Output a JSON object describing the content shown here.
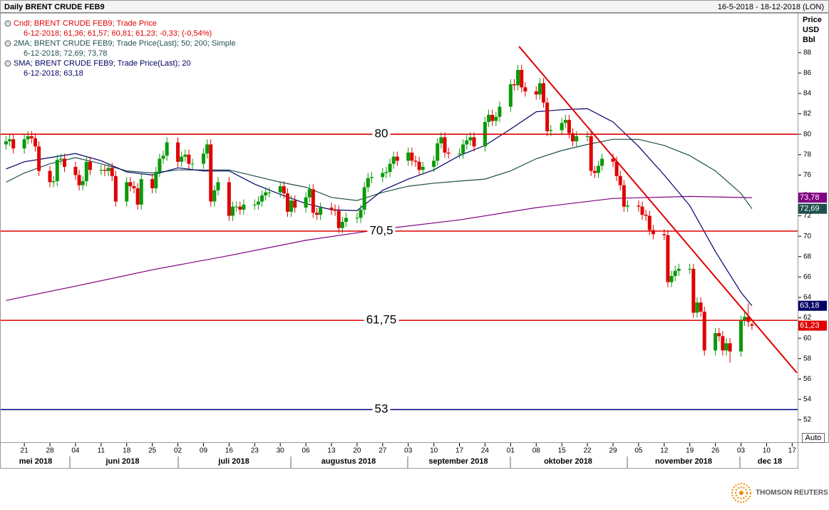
{
  "chart_data": {
    "type": "candlestick",
    "title": "Daily BRENT CRUDE FEB9",
    "date_range": "16-5-2018 - 18-12-2018 (LON)",
    "y_axis_label": [
      "Price",
      "USD",
      "Bbl"
    ],
    "scale_mode": "Auto",
    "legend": [
      {
        "text": "Cndl; BRENT CRUDE FEB9; Trade Price",
        "color": "#e00000"
      },
      {
        "text": "6-12-2018; 61,36; 61,57; 60,81; 61,23; -0,33; (-0,54%)",
        "color": "#e00000"
      },
      {
        "text": "2MA; BRENT CRUDE FEB9; Trade Price(Last);  50; 200; Simple",
        "color": "#1f4f4f"
      },
      {
        "text": "6-12-2018; 72,69; 73,78",
        "color": "#1f4f4f"
      },
      {
        "text": "SMA; BRENT CRUDE FEB9; Trade Price(Last);  20",
        "color": "#000066"
      },
      {
        "text": "6-12-2018; 63,18",
        "color": "#000066"
      }
    ],
    "xlim": [
      2.3,
      218.3
    ],
    "xticks": [
      {
        "value": 7,
        "label": "21"
      },
      {
        "value": 14,
        "label": "28"
      },
      {
        "value": 21,
        "label": "04"
      },
      {
        "value": 28,
        "label": "11"
      },
      {
        "value": 35,
        "label": "18"
      },
      {
        "value": 42,
        "label": "25"
      },
      {
        "value": 49,
        "label": "02"
      },
      {
        "value": 56,
        "label": "09"
      },
      {
        "value": 63,
        "label": "16"
      },
      {
        "value": 70,
        "label": "23"
      },
      {
        "value": 77,
        "label": "30"
      },
      {
        "value": 84,
        "label": "06"
      },
      {
        "value": 91,
        "label": "13"
      },
      {
        "value": 98,
        "label": "20"
      },
      {
        "value": 105,
        "label": "27"
      },
      {
        "value": 112,
        "label": "03"
      },
      {
        "value": 119,
        "label": "10"
      },
      {
        "value": 126,
        "label": "17"
      },
      {
        "value": 133,
        "label": "24"
      },
      {
        "value": 140,
        "label": "01"
      },
      {
        "value": 147,
        "label": "08"
      },
      {
        "value": 154,
        "label": "15"
      },
      {
        "value": 161,
        "label": "22"
      },
      {
        "value": 168,
        "label": "29"
      },
      {
        "value": 175,
        "label": "05"
      },
      {
        "value": 182,
        "label": "12"
      },
      {
        "value": 189,
        "label": "19"
      },
      {
        "value": 196,
        "label": "26"
      },
      {
        "value": 203,
        "label": "03"
      },
      {
        "value": 210,
        "label": "10"
      },
      {
        "value": 217,
        "label": "17"
      }
    ],
    "months": [
      "mei 2018",
      "juni 2018",
      "juli 2018",
      "augustus 2018",
      "september 2018",
      "oktober 2018",
      "november 2018",
      "dec 18"
    ],
    "ylim": [
      49.8,
      91.9
    ],
    "yticks": [
      52,
      54,
      56,
      58,
      60,
      62,
      64,
      66,
      68,
      70,
      72,
      74,
      76,
      78,
      80,
      82,
      84,
      86,
      88
    ],
    "up_color": "#0a9a0a",
    "down_color": "#e00000",
    "x": [
      2,
      3,
      4,
      7,
      8,
      9,
      10,
      11,
      14,
      15,
      16,
      17,
      18,
      21,
      22,
      23,
      24,
      25,
      28,
      29,
      30,
      31,
      32,
      35,
      36,
      37,
      38,
      39,
      42,
      43,
      44,
      45,
      46,
      49,
      50,
      51,
      52,
      53,
      56,
      57,
      58,
      59,
      60,
      63,
      64,
      65,
      66,
      67,
      70,
      71,
      72,
      73,
      74,
      77,
      78,
      79,
      80,
      81,
      84,
      85,
      86,
      87,
      88,
      91,
      92,
      93,
      94,
      95,
      98,
      99,
      100,
      101,
      102,
      105,
      106,
      107,
      108,
      109,
      112,
      113,
      114,
      115,
      116,
      119,
      120,
      121,
      122,
      123,
      126,
      127,
      128,
      129,
      130,
      133,
      134,
      135,
      136,
      137,
      140,
      141,
      142,
      143,
      144,
      147,
      148,
      149,
      150,
      151,
      154,
      155,
      156,
      157,
      158,
      161,
      162,
      163,
      164,
      165,
      168,
      169,
      170,
      171,
      172,
      175,
      176,
      177,
      178,
      179,
      182,
      183,
      184,
      185,
      186,
      189,
      190,
      191,
      192,
      193,
      196,
      197,
      198,
      199,
      200,
      203,
      204,
      205,
      206
    ],
    "open": [
      79.0,
      79.3,
      79.5,
      78.6,
      79.5,
      79.8,
      79.6,
      78.8,
      76.4,
      75.3,
      75.4,
      77.5,
      77.6,
      76.8,
      76.0,
      75.0,
      75.4,
      77.3,
      76.5,
      76.5,
      76.4,
      76.7,
      75.9,
      73.4,
      75.3,
      74.9,
      74.7,
      73.1,
      75.6,
      74.7,
      76.3,
      77.6,
      77.9,
      79.2,
      77.3,
      77.8,
      78.0,
      77.1,
      77.1,
      78.1,
      79.0,
      73.4,
      74.5,
      75.3,
      72.0,
      72.9,
      72.9,
      72.6,
      73.1,
      73.1,
      73.4,
      74.0,
      74.3,
      74.3,
      74.9,
      74.2,
      72.4,
      73.5,
      72.8,
      73.8,
      74.6,
      72.3,
      72.1,
      72.8,
      72.6,
      72.5,
      70.8,
      71.4,
      71.8,
      71.8,
      72.6,
      74.8,
      75.7,
      75.8,
      76.2,
      76.3,
      77.1,
      77.8,
      77.4,
      78.2,
      77.4,
      77.3,
      76.5,
      76.8,
      77.4,
      79.1,
      79.7,
      78.2,
      78.1,
      78.1,
      79.0,
      79.4,
      79.7,
      78.8,
      81.2,
      81.9,
      81.3,
      81.7,
      82.7,
      84.9,
      84.8,
      86.3,
      84.6,
      84.2,
      83.9,
      85.0,
      83.1,
      80.3,
      80.4,
      81.1,
      81.4,
      80.1,
      79.3,
      79.8,
      79.8,
      76.4,
      76.2,
      76.9,
      77.6,
      77.3,
      75.9,
      75.0,
      72.9,
      73.0,
      72.9,
      72.1,
      72.0,
      70.6,
      70.2,
      70.1,
      65.5,
      66.1,
      66.6,
      66.8,
      66.8,
      62.5,
      63.5,
      62.6,
      58.8,
      60.5,
      60.2,
      58.8,
      59.5,
      58.7,
      61.7,
      62.1,
      61.36
    ],
    "high": [
      79.8,
      80.0,
      80.0,
      80.0,
      80.3,
      80.3,
      80.1,
      79.3,
      76.9,
      75.9,
      78.0,
      78.1,
      78.1,
      77.3,
      76.5,
      75.9,
      77.8,
      77.8,
      77.0,
      77.0,
      77.2,
      77.2,
      76.4,
      75.8,
      75.8,
      75.4,
      75.2,
      76.1,
      76.1,
      76.8,
      78.1,
      78.4,
      79.7,
      79.7,
      78.3,
      78.5,
      78.5,
      77.6,
      78.6,
      79.5,
      79.5,
      75.0,
      75.8,
      75.8,
      73.4,
      73.4,
      73.4,
      73.6,
      73.6,
      73.9,
      74.5,
      74.8,
      74.8,
      75.4,
      75.4,
      74.7,
      74.0,
      74.0,
      74.3,
      75.1,
      75.1,
      72.8,
      73.3,
      73.3,
      73.1,
      73.0,
      71.9,
      72.3,
      72.3,
      73.1,
      75.3,
      76.2,
      76.3,
      76.7,
      76.8,
      77.6,
      78.3,
      78.3,
      78.7,
      78.7,
      77.9,
      77.8,
      77.3,
      77.9,
      79.6,
      80.2,
      80.2,
      78.7,
      78.6,
      79.5,
      79.9,
      80.2,
      80.2,
      81.7,
      82.4,
      82.4,
      82.2,
      83.2,
      85.4,
      85.4,
      86.8,
      86.8,
      85.1,
      84.7,
      85.5,
      85.5,
      83.6,
      80.9,
      81.6,
      81.9,
      81.9,
      80.6,
      80.3,
      80.3,
      80.3,
      76.9,
      77.4,
      78.1,
      78.1,
      77.8,
      76.4,
      75.5,
      73.5,
      73.5,
      73.4,
      72.6,
      72.5,
      71.1,
      70.7,
      70.6,
      66.6,
      67.1,
      67.3,
      67.3,
      67.3,
      64.0,
      64.0,
      63.1,
      61.0,
      61.0,
      60.7,
      60.0,
      60.0,
      62.2,
      62.6,
      63.4,
      61.57
    ],
    "low": [
      78.5,
      78.8,
      78.1,
      78.1,
      79.0,
      79.1,
      78.3,
      75.9,
      74.8,
      74.8,
      74.9,
      77.0,
      76.3,
      75.5,
      74.5,
      74.5,
      74.9,
      76.0,
      76.0,
      75.9,
      75.9,
      75.4,
      72.9,
      72.9,
      74.4,
      74.2,
      72.6,
      72.6,
      74.2,
      74.2,
      75.8,
      77.1,
      77.4,
      76.8,
      76.8,
      77.3,
      76.6,
      76.6,
      76.6,
      77.6,
      72.9,
      72.9,
      74.0,
      71.5,
      71.5,
      72.4,
      72.1,
      72.1,
      72.6,
      72.6,
      72.9,
      73.5,
      73.8,
      73.8,
      73.7,
      71.9,
      71.9,
      72.3,
      72.3,
      73.3,
      71.8,
      71.6,
      71.6,
      72.1,
      72.0,
      70.3,
      70.3,
      70.9,
      71.3,
      71.3,
      72.1,
      74.3,
      75.2,
      75.3,
      75.7,
      75.8,
      76.6,
      76.9,
      76.9,
      76.9,
      76.8,
      76.0,
      76.0,
      76.3,
      76.9,
      78.6,
      77.7,
      77.6,
      77.6,
      77.6,
      78.5,
      78.9,
      78.3,
      78.3,
      80.7,
      80.8,
      80.8,
      81.2,
      82.2,
      84.3,
      84.3,
      84.1,
      83.7,
      83.4,
      83.4,
      82.6,
      79.8,
      79.8,
      79.9,
      80.6,
      79.6,
      78.8,
      78.8,
      79.3,
      75.9,
      75.7,
      75.7,
      76.4,
      76.8,
      75.4,
      74.5,
      72.4,
      72.4,
      72.4,
      71.6,
      71.5,
      70.1,
      69.7,
      69.6,
      65.0,
      65.0,
      65.6,
      66.1,
      66.3,
      62.0,
      62.0,
      62.1,
      58.3,
      58.3,
      59.7,
      58.3,
      58.3,
      57.6,
      58.2,
      61.2,
      61.1,
      60.81
    ],
    "close": [
      79.3,
      79.5,
      78.6,
      79.5,
      79.8,
      79.6,
      78.8,
      76.4,
      75.3,
      75.4,
      77.5,
      77.6,
      76.8,
      76.0,
      75.0,
      75.4,
      77.3,
      76.5,
      76.5,
      76.4,
      76.7,
      75.9,
      73.4,
      75.3,
      74.9,
      74.7,
      73.1,
      75.6,
      74.7,
      76.3,
      77.6,
      77.9,
      79.2,
      77.3,
      77.8,
      78.0,
      77.1,
      77.1,
      78.1,
      79.0,
      73.4,
      74.5,
      75.3,
      72.0,
      72.9,
      72.9,
      72.6,
      73.1,
      73.1,
      73.4,
      74.0,
      74.3,
      74.3,
      74.9,
      74.2,
      72.4,
      73.5,
      72.8,
      73.8,
      74.6,
      72.3,
      72.1,
      72.8,
      72.6,
      72.5,
      70.8,
      71.4,
      71.8,
      71.8,
      72.6,
      74.8,
      75.7,
      75.8,
      76.2,
      76.3,
      77.1,
      77.8,
      77.4,
      78.2,
      77.4,
      77.3,
      76.5,
      76.8,
      77.4,
      79.1,
      79.7,
      78.2,
      78.1,
      78.1,
      79.0,
      79.4,
      79.7,
      78.8,
      81.2,
      81.9,
      81.3,
      81.7,
      82.7,
      84.9,
      84.8,
      86.3,
      84.6,
      84.2,
      83.9,
      85.0,
      83.1,
      80.3,
      80.4,
      81.1,
      81.4,
      80.1,
      79.3,
      79.8,
      79.8,
      76.4,
      76.2,
      76.9,
      77.6,
      77.3,
      75.9,
      75.0,
      72.9,
      73.0,
      72.9,
      72.1,
      72.0,
      70.6,
      70.2,
      70.1,
      65.5,
      66.1,
      66.6,
      66.8,
      66.8,
      62.5,
      63.5,
      62.6,
      58.8,
      60.5,
      60.2,
      58.8,
      59.5,
      58.7,
      61.7,
      62.1,
      61.6,
      61.23
    ],
    "last_label": "61,23",
    "last_color": "#e00000",
    "series": [
      {
        "color": "#800080",
        "last_label": "73,78",
        "x": [
          2,
          21,
          42,
          63,
          84,
          105,
          126,
          147,
          168,
          189,
          206
        ],
        "values": [
          63.7,
          65.1,
          66.7,
          68.1,
          69.6,
          70.7,
          71.6,
          72.8,
          73.7,
          73.9,
          73.78
        ]
      },
      {
        "color": "#1f4f4f",
        "last_label": "72,69",
        "x": [
          2,
          7,
          14,
          21,
          28,
          35,
          42,
          49,
          56,
          63,
          70,
          77,
          84,
          91,
          98,
          105,
          112,
          119,
          126,
          133,
          140,
          147,
          154,
          161,
          168,
          175,
          182,
          189,
          196,
          203,
          206
        ],
        "values": [
          75.3,
          76.2,
          77.1,
          77.7,
          77.1,
          76.4,
          76.2,
          76.5,
          76.5,
          76.5,
          75.9,
          75.3,
          74.8,
          73.8,
          73.5,
          74.3,
          74.9,
          75.2,
          75.4,
          75.6,
          76.4,
          77.6,
          78.4,
          79.0,
          79.5,
          79.5,
          78.9,
          77.9,
          76.4,
          74.2,
          72.69
        ]
      },
      {
        "color": "#000066",
        "last_label": "63,18",
        "x": [
          2,
          7,
          14,
          21,
          28,
          35,
          42,
          49,
          56,
          63,
          70,
          77,
          84,
          91,
          98,
          105,
          112,
          119,
          126,
          133,
          140,
          147,
          154,
          161,
          168,
          175,
          182,
          189,
          196,
          203,
          206
        ],
        "values": [
          76.6,
          77.3,
          77.7,
          78.1,
          77.4,
          76.3,
          76.0,
          76.7,
          76.4,
          76.4,
          75.1,
          74.1,
          73.2,
          72.6,
          72.5,
          74.5,
          75.6,
          76.5,
          77.9,
          78.9,
          80.5,
          82.2,
          82.4,
          82.5,
          81.2,
          78.8,
          76.0,
          73.0,
          68.5,
          64.5,
          63.18
        ]
      }
    ],
    "levels": [
      {
        "value": 80,
        "color": "#e00000"
      },
      {
        "value": 70.5,
        "label": "70,5",
        "color": "#e00000"
      },
      {
        "value": 61.75,
        "label": "61,75",
        "color": "#e00000"
      },
      {
        "value": 53,
        "color": "#000080"
      }
    ],
    "trendline": {
      "x": [
        142.3,
        218.3
      ],
      "y": [
        88.6,
        56.6
      ],
      "color": "#e00000"
    }
  },
  "footer": {
    "brand": "THOMSON REUTERS"
  }
}
